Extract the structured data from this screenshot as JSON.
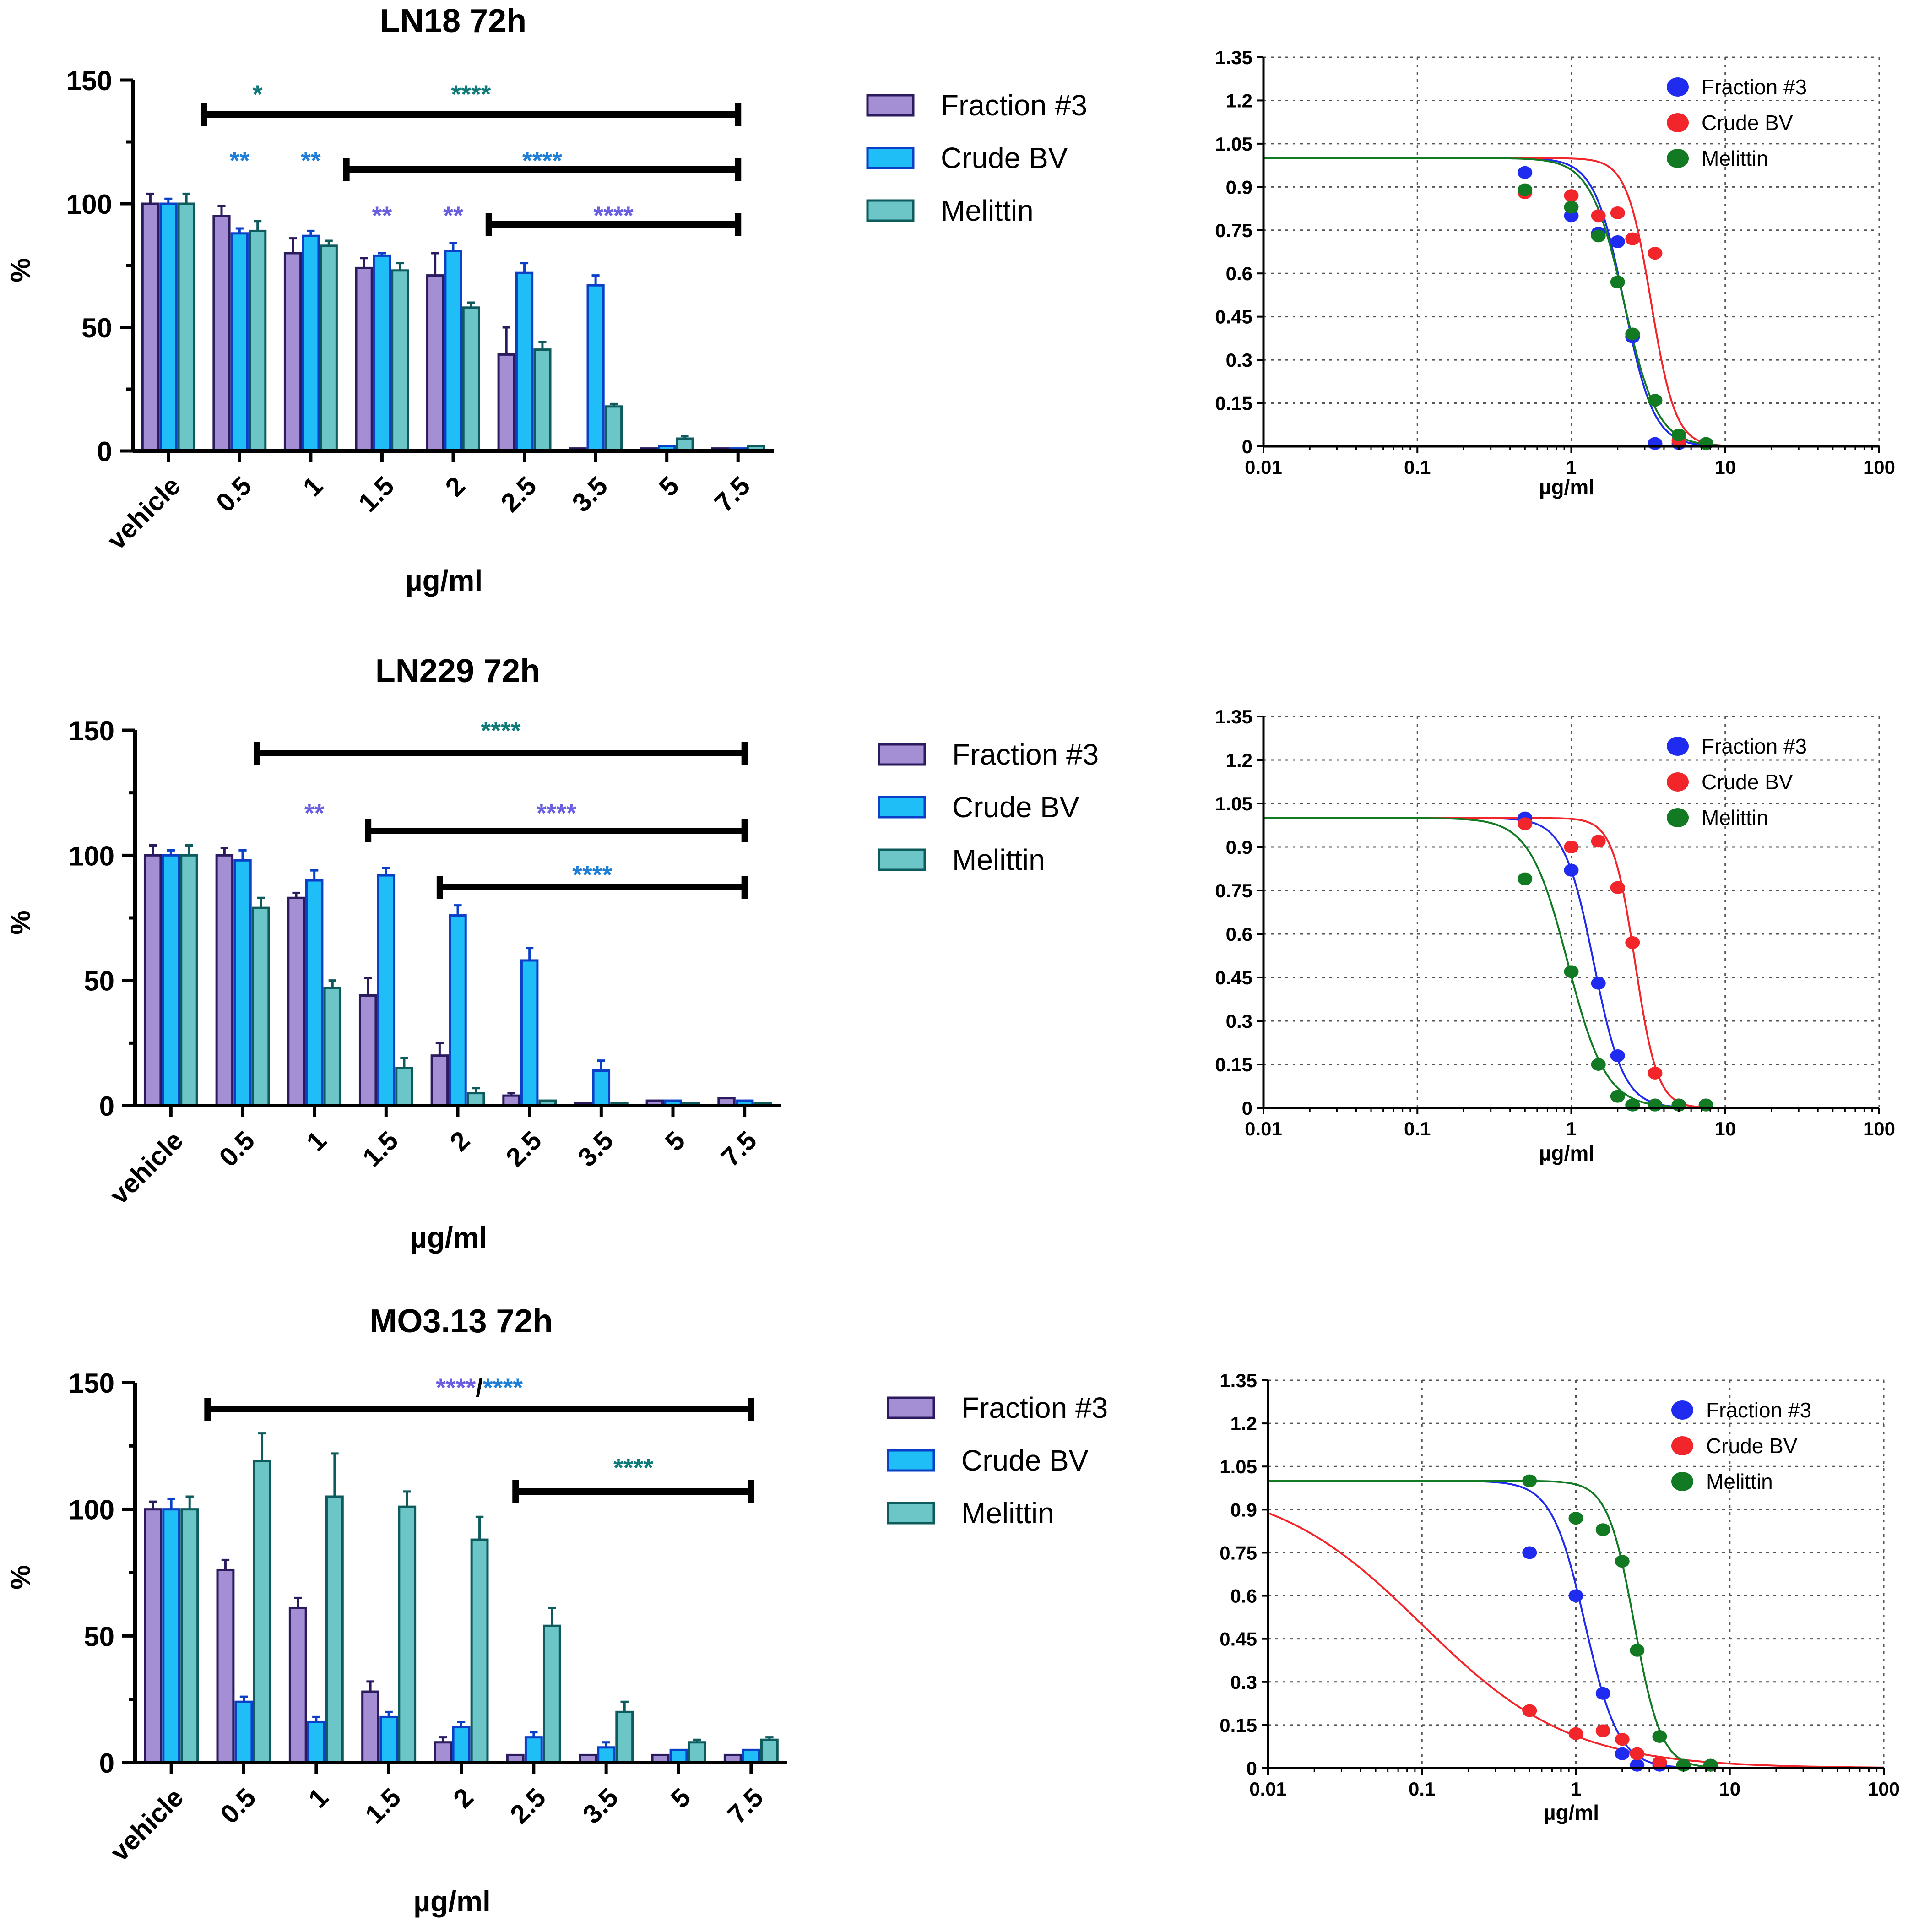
{
  "colors": {
    "fraction3_bar": "#a48fd4",
    "fraction3_edge": "#2b1a5e",
    "crudebv_bar": "#1fbef7",
    "crudebv_edge": "#0a3fc8",
    "melittin_bar": "#6cc6c8",
    "melittin_edge": "#0e5b5d",
    "sig_teal": "#0e7a7a",
    "sig_blue": "#1f7fd6",
    "sig_purple": "#6a5fe0",
    "fit_blue": "#1f2cf0",
    "fit_red": "#f2262a",
    "fit_green": "#117a22"
  },
  "chart_data": [
    {
      "type": "bar",
      "title": "LN18 72h",
      "xlabel": "µg/ml",
      "ylabel": "%",
      "ylim": [
        0,
        150
      ],
      "yticks": [
        0,
        50,
        100,
        150
      ],
      "categories": [
        "vehicle",
        "0.5",
        "1",
        "1.5",
        "2",
        "2.5",
        "3.5",
        "5",
        "7.5"
      ],
      "series": [
        {
          "name": "Fraction #3",
          "values": [
            100,
            95,
            80,
            74,
            71,
            39,
            1,
            1,
            1
          ],
          "errors": [
            4,
            4,
            6,
            4,
            9,
            11,
            0,
            0,
            0
          ]
        },
        {
          "name": "Crude BV",
          "values": [
            100,
            88,
            87,
            79,
            81,
            72,
            67,
            2,
            1
          ],
          "errors": [
            2,
            2,
            2,
            1,
            3,
            4,
            4,
            0,
            0
          ]
        },
        {
          "name": "Melittin",
          "values": [
            100,
            89,
            83,
            73,
            58,
            41,
            18,
            5,
            2
          ],
          "errors": [
            4,
            4,
            2,
            3,
            2,
            3,
            1,
            1,
            0
          ]
        }
      ],
      "legend": [
        "Fraction #3",
        "Crude BV",
        "Melittin"
      ],
      "significance": [
        {
          "label": "*",
          "color": "sig_teal",
          "category": "0.5"
        },
        {
          "label": "****",
          "color": "sig_teal",
          "bar_from": 0.5,
          "bar_to": 8.0
        },
        {
          "label": "**",
          "color": "sig_blue",
          "category": "0.5"
        },
        {
          "label": "**",
          "color": "sig_blue",
          "category": "1"
        },
        {
          "label": "****",
          "color": "sig_blue",
          "bar_from": 2.5,
          "bar_to": 8.0
        },
        {
          "label": "**",
          "color": "sig_purple",
          "category": "1.5"
        },
        {
          "label": "**",
          "color": "sig_purple",
          "category": "2"
        },
        {
          "label": "****",
          "color": "sig_purple",
          "bar_from": 4.5,
          "bar_to": 8.0
        }
      ]
    },
    {
      "type": "scatter",
      "title": "",
      "xlabel": "µg/ml",
      "xscale": "log",
      "xlim": [
        0.01,
        100
      ],
      "xticks": [
        "0.01",
        "0.1",
        "1",
        "10",
        "100"
      ],
      "ylim": [
        0,
        1.35
      ],
      "yticks": [
        "0",
        "0.15",
        "0.3",
        "0.45",
        "0.6",
        "0.75",
        "0.9",
        "1.05",
        "1.2",
        "1.35"
      ],
      "legend": [
        "Fraction #3",
        "Crude BV",
        "Melittin"
      ],
      "series": [
        {
          "name": "Fraction #3",
          "color": "fit_blue",
          "x": [
            0.5,
            1,
            1.5,
            2,
            2.5,
            3.5,
            5,
            7.5
          ],
          "y": [
            0.95,
            0.8,
            0.74,
            0.71,
            0.38,
            0.01,
            0.01,
            0.01
          ],
          "fit": {
            "top": 1.0,
            "ic50": 2.2,
            "hill": 4.5
          }
        },
        {
          "name": "Crude BV",
          "color": "fit_red",
          "x": [
            0.5,
            1,
            1.5,
            2,
            2.5,
            3.5,
            5,
            7.5
          ],
          "y": [
            0.88,
            0.87,
            0.8,
            0.81,
            0.72,
            0.67,
            0.02,
            0.01
          ],
          "fit": {
            "top": 1.0,
            "ic50": 3.3,
            "hill": 5.5
          }
        },
        {
          "name": "Melittin",
          "color": "fit_green",
          "x": [
            0.5,
            1,
            1.5,
            2,
            2.5,
            3.5,
            5,
            7.5
          ],
          "y": [
            0.89,
            0.83,
            0.73,
            0.57,
            0.39,
            0.16,
            0.04,
            0.01
          ],
          "fit": {
            "top": 1.0,
            "ic50": 2.2,
            "hill": 4.0
          }
        }
      ]
    },
    {
      "type": "bar",
      "title": "LN229 72h",
      "xlabel": "µg/ml",
      "ylabel": "%",
      "ylim": [
        0,
        150
      ],
      "yticks": [
        0,
        50,
        100,
        150
      ],
      "categories": [
        "vehicle",
        "0.5",
        "1",
        "1.5",
        "2",
        "2.5",
        "3.5",
        "5",
        "7.5"
      ],
      "series": [
        {
          "name": "Fraction #3",
          "values": [
            100,
            100,
            83,
            44,
            20,
            4,
            1,
            2,
            3
          ],
          "errors": [
            4,
            3,
            2,
            7,
            5,
            1,
            0,
            0,
            0
          ]
        },
        {
          "name": "Crude BV",
          "values": [
            100,
            98,
            90,
            92,
            76,
            58,
            14,
            2,
            2
          ],
          "errors": [
            2,
            4,
            4,
            3,
            4,
            5,
            4,
            0,
            0
          ]
        },
        {
          "name": "Melittin",
          "values": [
            100,
            79,
            47,
            15,
            5,
            2,
            1,
            1,
            1
          ],
          "errors": [
            4,
            4,
            3,
            4,
            2,
            0,
            0,
            0,
            0
          ]
        }
      ],
      "legend": [
        "Fraction #3",
        "Crude BV",
        "Melittin"
      ],
      "significance": [
        {
          "label": "****",
          "color": "sig_teal",
          "bar_from": 1.2,
          "bar_to": 8.0
        },
        {
          "label": "**",
          "color": "sig_purple",
          "category": "1"
        },
        {
          "label": "****",
          "color": "sig_purple",
          "bar_from": 2.75,
          "bar_to": 8.0
        },
        {
          "label": "****",
          "color": "sig_blue",
          "bar_from": 3.75,
          "bar_to": 8.0
        }
      ]
    },
    {
      "type": "scatter",
      "title": "",
      "xlabel": "µg/ml",
      "xscale": "log",
      "xlim": [
        0.01,
        100
      ],
      "xticks": [
        "0.01",
        "0.1",
        "1",
        "10",
        "100"
      ],
      "ylim": [
        0,
        1.35
      ],
      "yticks": [
        "0",
        "0.15",
        "0.3",
        "0.45",
        "0.6",
        "0.75",
        "0.9",
        "1.05",
        "1.2",
        "1.35"
      ],
      "legend": [
        "Fraction #3",
        "Crude BV",
        "Melittin"
      ],
      "series": [
        {
          "name": "Fraction #3",
          "color": "fit_blue",
          "x": [
            0.5,
            1,
            1.5,
            2,
            2.5,
            3.5,
            5,
            7.5
          ],
          "y": [
            1.0,
            0.82,
            0.43,
            0.18,
            0.01,
            0.01,
            0.01,
            0.01
          ],
          "fit": {
            "top": 1.0,
            "ic50": 1.4,
            "hill": 4.5
          }
        },
        {
          "name": "Crude BV",
          "color": "fit_red",
          "x": [
            0.5,
            1,
            1.5,
            2,
            2.5,
            3.5,
            5,
            7.5
          ],
          "y": [
            0.98,
            0.9,
            0.92,
            0.76,
            0.57,
            0.12,
            0.01,
            0.01
          ],
          "fit": {
            "top": 1.0,
            "ic50": 2.6,
            "hill": 6.0
          }
        },
        {
          "name": "Melittin",
          "color": "fit_green",
          "x": [
            0.5,
            1,
            1.5,
            2,
            2.5,
            3.5,
            5,
            7.5
          ],
          "y": [
            0.79,
            0.47,
            0.15,
            0.04,
            0.01,
            0.01,
            0.01,
            0.01
          ],
          "fit": {
            "top": 1.0,
            "ic50": 0.95,
            "hill": 3.5
          }
        }
      ]
    },
    {
      "type": "bar",
      "title": "MO3.13 72h",
      "xlabel": "µg/ml",
      "ylabel": "%",
      "ylim": [
        0,
        150
      ],
      "yticks": [
        0,
        50,
        100,
        150
      ],
      "categories": [
        "vehicle",
        "0.5",
        "1",
        "1.5",
        "2",
        "2.5",
        "3.5",
        "5",
        "7.5"
      ],
      "series": [
        {
          "name": "Fraction #3",
          "values": [
            100,
            76,
            61,
            28,
            8,
            3,
            3,
            3,
            3
          ],
          "errors": [
            3,
            4,
            4,
            4,
            2,
            0,
            0,
            0,
            0
          ]
        },
        {
          "name": "Crude BV",
          "values": [
            100,
            24,
            16,
            18,
            14,
            10,
            6,
            5,
            5
          ],
          "errors": [
            4,
            2,
            2,
            2,
            2,
            2,
            2,
            0,
            0
          ]
        },
        {
          "name": "Melittin",
          "values": [
            100,
            119,
            105,
            101,
            88,
            54,
            20,
            8,
            9
          ],
          "errors": [
            5,
            11,
            17,
            6,
            9,
            7,
            4,
            1,
            1
          ]
        }
      ],
      "legend": [
        "Fraction #3",
        "Crude BV",
        "Melittin"
      ],
      "significance": [
        {
          "label": "****",
          "label2": "/",
          "label3": "****",
          "color": "sig_purple",
          "color3": "sig_blue",
          "bar_from": 0.5,
          "bar_to": 8.0
        },
        {
          "label": "****",
          "color": "sig_teal",
          "bar_from": 4.75,
          "bar_to": 8.0
        }
      ]
    },
    {
      "type": "scatter",
      "title": "",
      "xlabel": "µg/ml",
      "xscale": "log",
      "xlim": [
        0.01,
        100
      ],
      "xticks": [
        "0.01",
        "0.1",
        "1",
        "10",
        "100"
      ],
      "ylim": [
        0,
        1.35
      ],
      "yticks": [
        "0",
        "0.15",
        "0.3",
        "0.45",
        "0.6",
        "0.75",
        "0.9",
        "1.05",
        "1.2",
        "1.35"
      ],
      "legend": [
        "Fraction #3",
        "Crude BV",
        "Melittin"
      ],
      "series": [
        {
          "name": "Fraction #3",
          "color": "fit_blue",
          "x": [
            0.5,
            1,
            1.5,
            2,
            2.5,
            3.5,
            5,
            7.5
          ],
          "y": [
            0.75,
            0.6,
            0.26,
            0.05,
            0.01,
            0.01,
            0.01,
            0.01
          ],
          "fit": {
            "top": 1.0,
            "ic50": 1.15,
            "hill": 4.0
          }
        },
        {
          "name": "Crude BV",
          "color": "fit_red",
          "x": [
            0.5,
            1,
            1.5,
            2,
            2.5,
            3.5,
            5,
            7.5
          ],
          "y": [
            0.2,
            0.12,
            0.13,
            0.1,
            0.05,
            0.02,
            0.01,
            0.01
          ],
          "fit": {
            "top": 1.0,
            "ic50": 0.1,
            "hill": 0.9
          }
        },
        {
          "name": "Melittin",
          "color": "fit_green",
          "x": [
            0.5,
            1,
            1.5,
            2,
            2.5,
            3.5,
            5,
            7.5
          ],
          "y": [
            1.0,
            0.87,
            0.83,
            0.72,
            0.41,
            0.11,
            0.01,
            0.01
          ],
          "fit": {
            "top": 1.0,
            "ic50": 2.4,
            "hill": 5.0
          }
        }
      ]
    }
  ]
}
